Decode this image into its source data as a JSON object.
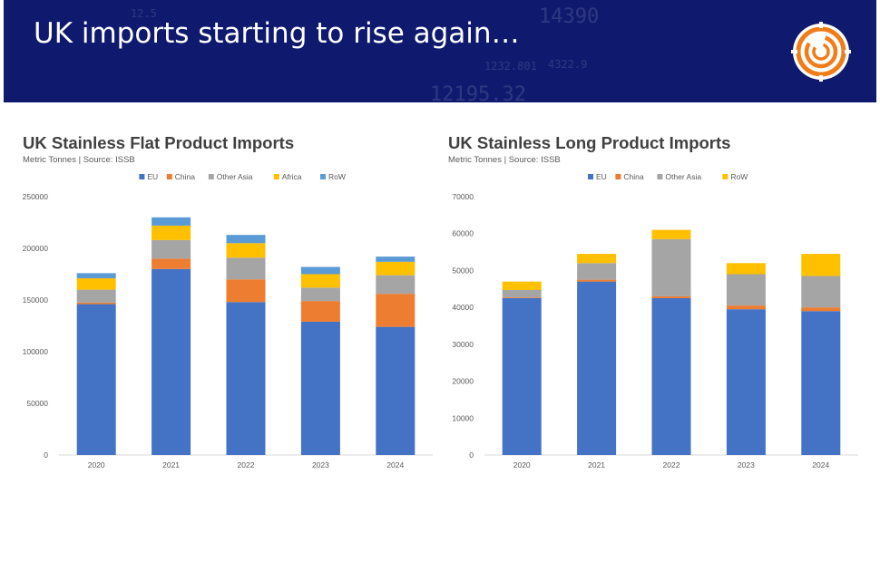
{
  "banner": {
    "title": "UK imports starting to rise again…",
    "background_color": "#0f1a6e",
    "decor_numbers": [
      "14390",
      "12195.32",
      "12.5",
      "1232.801",
      "4322.9"
    ],
    "logo_icon": "circular-target-logo-icon"
  },
  "charts": [
    {
      "id": "flat",
      "title": "UK Stainless Flat Product Imports",
      "subtitle": "Metric Tonnes | Source: ISSB",
      "ytick_labels": [
        "0",
        "50000",
        "100000",
        "150000",
        "200000",
        "250000"
      ]
    },
    {
      "id": "long",
      "title": "UK Stainless Long Product Imports",
      "subtitle": "Metric Tonnes | Source: ISSB",
      "ytick_labels": [
        "0",
        "10000",
        "20000",
        "30000",
        "40000",
        "50000",
        "60000",
        "70000"
      ]
    }
  ],
  "chart_data": [
    {
      "type": "bar",
      "stacked": true,
      "title": "UK Stainless Flat Product Imports",
      "subtitle": "Metric Tonnes | Source: ISSB",
      "categories": [
        "2020",
        "2021",
        "2022",
        "2023",
        "2024"
      ],
      "ylim": [
        0,
        250000
      ],
      "yticks": [
        0,
        50000,
        100000,
        150000,
        200000,
        250000
      ],
      "grid": false,
      "legend_position": "top",
      "series": [
        {
          "name": "EU",
          "color": "#4472c4",
          "values": [
            146000,
            180000,
            148000,
            129000,
            124000
          ]
        },
        {
          "name": "China",
          "color": "#ed7d31",
          "values": [
            1500,
            10000,
            22000,
            20000,
            32000
          ]
        },
        {
          "name": "Other Asia",
          "color": "#a5a5a5",
          "values": [
            12500,
            18000,
            21000,
            13000,
            18000
          ]
        },
        {
          "name": "Africa",
          "color": "#ffc000",
          "values": [
            11000,
            14000,
            14000,
            13000,
            13000
          ]
        },
        {
          "name": "RoW",
          "color": "#5b9bd5",
          "values": [
            5000,
            8000,
            8000,
            7000,
            5000
          ]
        }
      ]
    },
    {
      "type": "bar",
      "stacked": true,
      "title": "UK Stainless Long Product Imports",
      "subtitle": "Metric Tonnes | Source: ISSB",
      "categories": [
        "2020",
        "2021",
        "2022",
        "2023",
        "2024"
      ],
      "ylim": [
        0,
        70000
      ],
      "yticks": [
        0,
        10000,
        20000,
        30000,
        40000,
        50000,
        60000,
        70000
      ],
      "grid": false,
      "legend_position": "top",
      "series": [
        {
          "name": "EU",
          "color": "#4472c4",
          "values": [
            42500,
            47000,
            42500,
            39500,
            39000
          ]
        },
        {
          "name": "China",
          "color": "#ed7d31",
          "values": [
            200,
            500,
            500,
            1000,
            1000
          ]
        },
        {
          "name": "Other Asia",
          "color": "#a5a5a5",
          "values": [
            2000,
            4500,
            15500,
            8500,
            8500
          ]
        },
        {
          "name": "RoW",
          "color": "#ffc000",
          "values": [
            2300,
            2500,
            2500,
            3000,
            6000
          ]
        }
      ]
    }
  ]
}
